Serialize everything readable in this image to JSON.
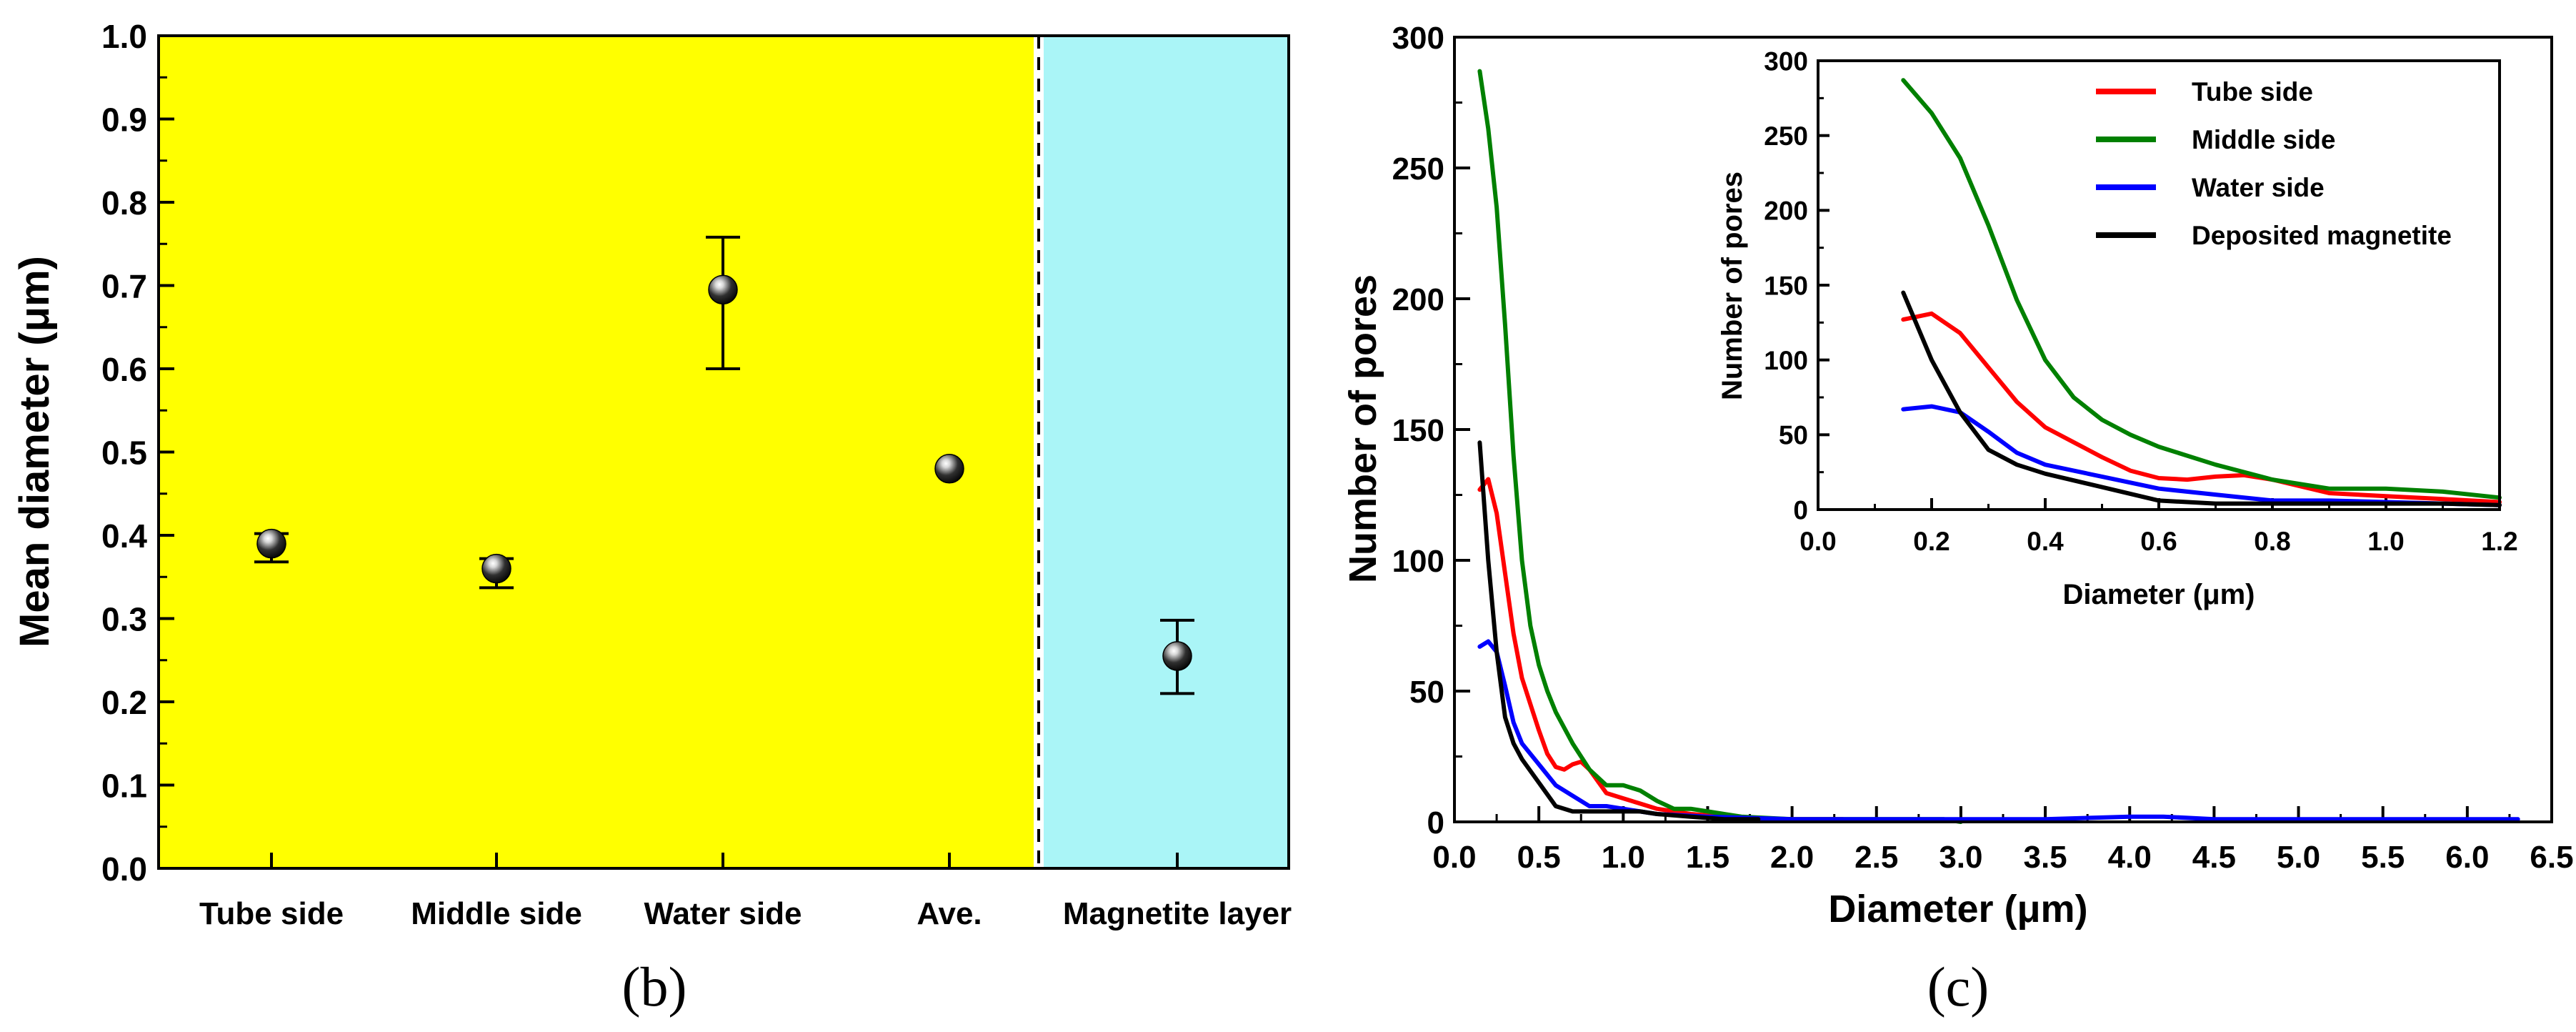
{
  "chart_data": [
    {
      "panel": "b",
      "type": "scatter",
      "title": "",
      "xlabel": "",
      "ylabel": "Mean diameter (μm)",
      "ylim": [
        0.0,
        1.0
      ],
      "yticks": [
        "0.0",
        "0.1",
        "0.2",
        "0.3",
        "0.4",
        "0.5",
        "0.6",
        "0.7",
        "0.8",
        "0.9",
        "1.0"
      ],
      "categories": [
        "Tube side",
        "Middle side",
        "Water side",
        "Ave.",
        "Magnetite layer"
      ],
      "points": [
        {
          "category": "Tube side",
          "value": 0.39,
          "err_low": 0.368,
          "err_high": 0.402
        },
        {
          "category": "Middle side",
          "value": 0.36,
          "err_low": 0.337,
          "err_high": 0.372
        },
        {
          "category": "Water side",
          "value": 0.695,
          "err_low": 0.6,
          "err_high": 0.758
        },
        {
          "category": "Ave.",
          "value": 0.48,
          "err_low": null,
          "err_high": null
        },
        {
          "category": "Magnetite layer",
          "value": 0.255,
          "err_low": 0.21,
          "err_high": 0.298
        }
      ],
      "regions": [
        {
          "name": "tube-metal",
          "from_category": 0,
          "to_category": 3,
          "color": "#ffff00"
        },
        {
          "name": "magnetite",
          "from_category": 4,
          "to_category": 4,
          "color": "#aaf5f7"
        }
      ],
      "separator": "dashed vertical line between Ave. and Magnetite layer",
      "panel_label": "(b)"
    },
    {
      "panel": "c",
      "type": "line",
      "title": "",
      "xlabel": "Diameter (μm)",
      "ylabel": "Number of pores",
      "xlim": [
        0.0,
        6.5
      ],
      "ylim": [
        0,
        300
      ],
      "xticks": [
        "0.0",
        "0.5",
        "1.0",
        "1.5",
        "2.0",
        "2.5",
        "3.0",
        "3.5",
        "4.0",
        "4.5",
        "5.0",
        "5.5",
        "6.0",
        "6.5"
      ],
      "yticks": [
        "0",
        "50",
        "100",
        "150",
        "200",
        "250",
        "300"
      ],
      "series": [
        {
          "name": "Tube side",
          "color": "#ff0000",
          "x": [
            0.15,
            0.2,
            0.25,
            0.3,
            0.35,
            0.4,
            0.45,
            0.5,
            0.55,
            0.6,
            0.65,
            0.7,
            0.75,
            0.8,
            0.9,
            1.0,
            1.1,
            1.2,
            1.4,
            1.6,
            1.8,
            2.0,
            2.3
          ],
          "y": [
            127,
            131,
            118,
            95,
            72,
            55,
            45,
            35,
            26,
            21,
            20,
            22,
            23,
            20,
            11,
            9,
            7,
            5,
            3,
            2,
            1,
            1,
            1
          ]
        },
        {
          "name": "Middle side",
          "color": "#008000",
          "x": [
            0.15,
            0.2,
            0.25,
            0.3,
            0.35,
            0.4,
            0.45,
            0.5,
            0.55,
            0.6,
            0.7,
            0.8,
            0.9,
            1.0,
            1.1,
            1.2,
            1.3,
            1.4,
            1.5,
            1.7,
            2.0,
            2.3,
            2.6,
            2.9,
            3.0
          ],
          "y": [
            287,
            265,
            235,
            190,
            140,
            100,
            75,
            60,
            50,
            42,
            30,
            20,
            14,
            14,
            12,
            8,
            5,
            5,
            4,
            2,
            1,
            1,
            1,
            1,
            0
          ]
        },
        {
          "name": "Water side",
          "color": "#0000ff",
          "x": [
            0.15,
            0.2,
            0.25,
            0.3,
            0.35,
            0.4,
            0.5,
            0.6,
            0.7,
            0.8,
            0.9,
            1.0,
            1.1,
            1.2,
            1.5,
            2.0,
            2.5,
            3.0,
            3.5,
            4.0,
            4.2,
            4.5,
            5.0,
            5.5,
            6.0,
            6.3
          ],
          "y": [
            67,
            69,
            65,
            52,
            38,
            30,
            22,
            14,
            10,
            6,
            6,
            5,
            4,
            3,
            2,
            1,
            1,
            1,
            1,
            2,
            2,
            1,
            1,
            1,
            1,
            1
          ]
        },
        {
          "name": "Deposited magnetite",
          "color": "#000000",
          "x": [
            0.15,
            0.2,
            0.25,
            0.3,
            0.35,
            0.4,
            0.5,
            0.6,
            0.7,
            0.8,
            0.9,
            1.0,
            1.1,
            1.2,
            1.4,
            1.6,
            1.8
          ],
          "y": [
            145,
            100,
            65,
            40,
            30,
            24,
            15,
            6,
            4,
            4,
            4,
            4,
            4,
            3,
            2,
            1,
            1
          ]
        }
      ],
      "inset": {
        "xlabel": "Diameter (μm)",
        "ylabel": "Number of pores",
        "xlim": [
          0.0,
          1.2
        ],
        "ylim": [
          0,
          300
        ],
        "xticks": [
          "0.0",
          "0.2",
          "0.4",
          "0.6",
          "0.8",
          "1.0",
          "1.2"
        ],
        "yticks": [
          "0",
          "50",
          "100",
          "150",
          "200",
          "250",
          "300"
        ],
        "legend": [
          "Tube side",
          "Middle side",
          "Water side",
          "Deposited magnetite"
        ]
      },
      "legend_position": "inset top-right",
      "panel_label": "(c)"
    }
  ]
}
